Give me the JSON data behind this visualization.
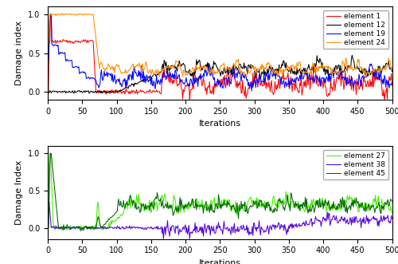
{
  "subplot1": {
    "ylabel": "Damage index",
    "xlabel": "Iterations",
    "xlim": [
      0,
      500
    ],
    "ylim": [
      -0.1,
      1.1
    ],
    "yticks": [
      0,
      0.5,
      1
    ],
    "xticks": [
      0,
      50,
      100,
      150,
      200,
      250,
      300,
      350,
      400,
      450,
      500
    ],
    "legend": [
      "element 1",
      "element 12",
      "element 19",
      "element 24"
    ],
    "colors": [
      "#ff0000",
      "#000000",
      "#0000ff",
      "#ff8c00"
    ]
  },
  "subplot2": {
    "ylabel": "Damage Index",
    "xlabel": "Iterations",
    "xlim": [
      0,
      500
    ],
    "ylim": [
      -0.15,
      1.1
    ],
    "yticks": [
      0,
      0.5,
      1
    ],
    "xticks": [
      0,
      50,
      100,
      150,
      200,
      250,
      300,
      350,
      400,
      450,
      500
    ],
    "legend": [
      "element 27",
      "element 38",
      "element 45"
    ],
    "colors": [
      "#44ee00",
      "#5500dd",
      "#006600"
    ]
  }
}
